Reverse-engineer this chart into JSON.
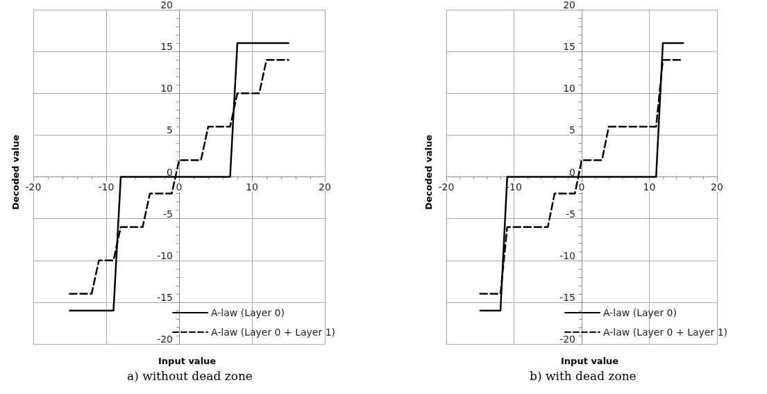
{
  "chart_data": [
    {
      "type": "line",
      "title": "a) without dead zone",
      "xlabel": "Input value",
      "ylabel": "Decoded value",
      "xlim": [
        -20,
        20
      ],
      "xticks": [
        -20,
        -10,
        0,
        10,
        20
      ],
      "ylim": [
        -20,
        20
      ],
      "yticks": [
        -20,
        -15,
        -10,
        -5,
        0,
        5,
        10,
        15,
        20
      ],
      "grid": true,
      "legend": "bottom right",
      "marker": "none",
      "series": [
        {
          "name": "A-law (Layer 0)",
          "color": "#000000",
          "line_style": "solid",
          "x": [
            -15,
            -9,
            -8,
            7,
            8,
            15
          ],
          "values": [
            -16,
            -16,
            0,
            0,
            16,
            16
          ]
        },
        {
          "name": "A-law (Layer 0 + Layer 1)",
          "color": "#000000",
          "line_style": "dashed",
          "x": [
            -15,
            -12,
            -11,
            -9,
            -8,
            -5,
            -4,
            -1,
            0,
            3,
            4,
            7,
            8,
            11,
            12,
            15
          ],
          "values": [
            -14,
            -14,
            -10,
            -10,
            -6,
            -6,
            -2,
            -2,
            2,
            2,
            6,
            6,
            10,
            10,
            14,
            14
          ]
        }
      ]
    },
    {
      "type": "line",
      "title": "b) with dead zone",
      "xlabel": "Input value",
      "ylabel": "Decoded value",
      "xlim": [
        -20,
        20
      ],
      "xticks": [
        -20,
        -10,
        0,
        10,
        20
      ],
      "ylim": [
        -20,
        20
      ],
      "yticks": [
        -20,
        -15,
        -10,
        -5,
        0,
        5,
        10,
        15,
        20
      ],
      "grid": true,
      "legend": "bottom right",
      "marker": "none",
      "series": [
        {
          "name": "A-law (Layer 0)",
          "color": "#000000",
          "line_style": "solid",
          "x": [
            -15,
            -12,
            -11,
            11,
            12,
            15
          ],
          "values": [
            -16,
            -16,
            0,
            0,
            16,
            16
          ]
        },
        {
          "name": "A-law (Layer 0 + Layer 1)",
          "color": "#000000",
          "line_style": "dashed",
          "x": [
            -15,
            -12,
            -11,
            -5,
            -4,
            -1,
            0,
            3,
            4,
            11,
            12,
            15
          ],
          "values": [
            -14,
            -14,
            -6,
            -6,
            -2,
            -2,
            2,
            2,
            6,
            6,
            14,
            14
          ]
        }
      ]
    }
  ]
}
